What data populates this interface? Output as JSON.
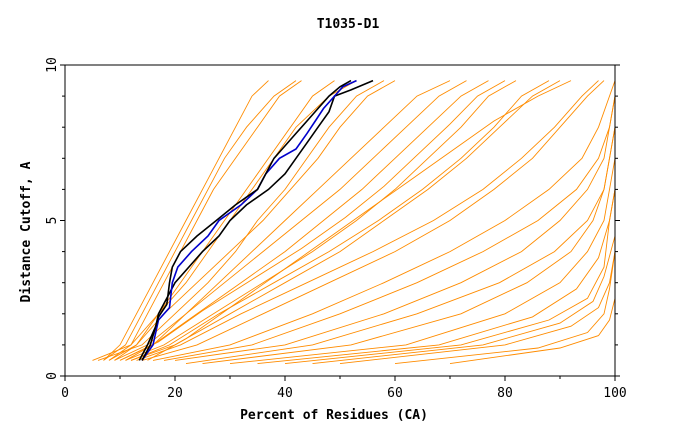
{
  "chart_data": {
    "type": "line",
    "title": "T1035-D1",
    "xlabel": "Percent of Residues (CA)",
    "ylabel": "Distance Cutoff, A",
    "xlim": [
      0,
      100
    ],
    "ylim": [
      0,
      10
    ],
    "x_ticks": [
      0,
      20,
      40,
      60,
      80,
      100
    ],
    "y_ticks": [
      0,
      5,
      10
    ],
    "grid": false,
    "legend": "none",
    "colors": {
      "background_models": "#ff8c00",
      "highlight_1": "#000000",
      "highlight_2": "#0000cc",
      "highlight_3": "#000000"
    },
    "background_curves": [
      {
        "x": [
          5,
          12,
          17,
          22,
          26,
          30,
          34,
          38,
          42,
          48,
          53
        ],
        "y": [
          0.5,
          1,
          2,
          3,
          4,
          5,
          6,
          7,
          8,
          9,
          9.5
        ]
      },
      {
        "x": [
          6,
          14,
          20,
          26,
          31,
          35,
          40,
          44,
          48,
          53,
          58
        ],
        "y": [
          0.5,
          1,
          2,
          3,
          4,
          5,
          6,
          7,
          8,
          9,
          9.5
        ]
      },
      {
        "x": [
          7,
          11,
          14,
          17,
          20,
          23,
          26,
          29,
          33,
          38,
          42
        ],
        "y": [
          0.5,
          1,
          2,
          3,
          4,
          5,
          6,
          7,
          8,
          9,
          9.5
        ]
      },
      {
        "x": [
          8,
          13,
          18,
          24,
          30,
          36,
          41,
          46,
          50,
          55,
          60
        ],
        "y": [
          0.5,
          1,
          2,
          3,
          4,
          5,
          6,
          7,
          8,
          9,
          9.5
        ]
      },
      {
        "x": [
          9,
          15,
          22,
          28,
          34,
          40,
          46,
          52,
          58,
          64,
          70
        ],
        "y": [
          0.5,
          1,
          2,
          3,
          4,
          5,
          6,
          7,
          8,
          9,
          9.5
        ]
      },
      {
        "x": [
          10,
          16,
          24,
          32,
          40,
          47,
          54,
          60,
          66,
          72,
          77
        ],
        "y": [
          0.5,
          1,
          2,
          3,
          4,
          5,
          6,
          7,
          8,
          9,
          9.5
        ]
      },
      {
        "x": [
          11,
          18,
          27,
          36,
          45,
          53,
          60,
          66,
          72,
          77,
          82
        ],
        "y": [
          0.5,
          1,
          2,
          3,
          4,
          5,
          6,
          7,
          8,
          9,
          9.5
        ]
      },
      {
        "x": [
          12,
          20,
          30,
          40,
          50,
          58,
          66,
          73,
          79,
          85,
          90
        ],
        "y": [
          0.5,
          1,
          2,
          3,
          4,
          5,
          6,
          7,
          8,
          9,
          9.5
        ]
      },
      {
        "x": [
          14,
          24,
          36,
          48,
          60,
          70,
          78,
          85,
          90,
          95,
          98
        ],
        "y": [
          0.5,
          1,
          2,
          3,
          4,
          5,
          6,
          7,
          8,
          9,
          9.5
        ]
      },
      {
        "x": [
          16,
          30,
          45,
          58,
          70,
          80,
          88,
          94,
          97,
          99,
          100
        ],
        "y": [
          0.5,
          1,
          2,
          3,
          4,
          5,
          6,
          7,
          8,
          9,
          9.5
        ]
      },
      {
        "x": [
          20,
          40,
          58,
          72,
          83,
          90,
          95,
          98,
          99,
          100,
          100
        ],
        "y": [
          0.5,
          1,
          2,
          3,
          4,
          5,
          6,
          7,
          8,
          9,
          9.5
        ]
      },
      {
        "x": [
          25,
          52,
          72,
          84,
          92,
          96,
          98,
          99,
          100,
          100,
          100
        ],
        "y": [
          0.4,
          1,
          2,
          3,
          4,
          5,
          6,
          7,
          8,
          9,
          9.5
        ]
      },
      {
        "x": [
          30,
          62,
          80,
          90,
          95,
          98,
          99,
          100,
          100,
          100,
          100
        ],
        "y": [
          0.4,
          1,
          2,
          3,
          4,
          5,
          6,
          7,
          8,
          9,
          9.5
        ]
      },
      {
        "x": [
          40,
          72,
          88,
          95,
          98,
          99,
          100,
          100,
          100,
          100,
          100
        ],
        "y": [
          0.4,
          1,
          1.8,
          2.5,
          3.5,
          5,
          6,
          7,
          8,
          9,
          9.5
        ]
      },
      {
        "x": [
          50,
          80,
          92,
          97,
          99,
          100,
          100,
          100,
          100,
          100,
          100
        ],
        "y": [
          0.4,
          1,
          1.6,
          2.2,
          3,
          4,
          5,
          6,
          7,
          8,
          9.5
        ]
      },
      {
        "x": [
          60,
          86,
          95,
          98,
          99,
          100,
          100,
          100,
          100,
          100,
          100
        ],
        "y": [
          0.4,
          0.9,
          1.4,
          2,
          2.8,
          4,
          5,
          6,
          7,
          8,
          9.5
        ]
      },
      {
        "x": [
          70,
          90,
          97,
          99,
          100,
          100,
          100,
          100,
          100,
          100,
          100
        ],
        "y": [
          0.4,
          0.9,
          1.3,
          1.8,
          2.5,
          3.5,
          5,
          6,
          7,
          8,
          9.5
        ]
      },
      {
        "x": [
          15,
          22,
          30,
          38,
          46,
          54,
          62,
          70,
          78,
          86,
          92
        ],
        "y": [
          0.5,
          1.2,
          2.2,
          3.2,
          4.2,
          5.2,
          6.2,
          7.2,
          8.2,
          9,
          9.5
        ]
      },
      {
        "x": [
          10,
          17,
          25,
          34,
          43,
          51,
          58,
          64,
          70,
          75,
          80
        ],
        "y": [
          0.5,
          1.1,
          2.1,
          3.1,
          4.1,
          5.1,
          6.1,
          7.1,
          8.1,
          9,
          9.5
        ]
      },
      {
        "x": [
          9,
          13,
          17,
          21,
          25,
          29,
          33,
          37,
          41,
          45,
          49
        ],
        "y": [
          0.5,
          1,
          2,
          3,
          4,
          5,
          6,
          7,
          8,
          9,
          9.5
        ]
      },
      {
        "x": [
          8,
          12,
          15,
          18,
          21,
          24,
          27,
          31,
          35,
          39,
          43
        ],
        "y": [
          0.5,
          1,
          2,
          3,
          4,
          5,
          6,
          7,
          8,
          9,
          9.5
        ]
      },
      {
        "x": [
          7,
          10,
          13,
          16,
          19,
          22,
          25,
          28,
          31,
          34,
          37
        ],
        "y": [
          0.5,
          1,
          2,
          3,
          4,
          5,
          6,
          7,
          8,
          9,
          9.5
        ]
      },
      {
        "x": [
          12,
          19,
          28,
          38,
          48,
          57,
          65,
          72,
          78,
          83,
          88
        ],
        "y": [
          0.5,
          1,
          2,
          3,
          4,
          5,
          6,
          7,
          8,
          9,
          9.5
        ]
      },
      {
        "x": [
          18,
          34,
          50,
          64,
          76,
          86,
          93,
          97,
          99,
          100,
          100
        ],
        "y": [
          0.5,
          1,
          2,
          3,
          4,
          5,
          6,
          7,
          8,
          9,
          9.5
        ]
      },
      {
        "x": [
          22,
          45,
          64,
          79,
          89,
          95,
          98,
          99,
          100,
          100,
          100
        ],
        "y": [
          0.4,
          1,
          2,
          3,
          4,
          5,
          6,
          7,
          8,
          9,
          9.5
        ]
      },
      {
        "x": [
          35,
          68,
          85,
          93,
          97,
          99,
          100,
          100,
          100,
          100,
          100
        ],
        "y": [
          0.4,
          1,
          1.9,
          2.8,
          3.8,
          5,
          6,
          7,
          8,
          9,
          9.5
        ]
      },
      {
        "x": [
          45,
          76,
          90,
          96,
          98,
          100,
          100,
          100,
          100,
          100,
          100
        ],
        "y": [
          0.4,
          1,
          1.7,
          2.4,
          3.2,
          4.5,
          5.5,
          6.5,
          7.5,
          8.5,
          9.5
        ]
      },
      {
        "x": [
          13,
          21,
          32,
          44,
          56,
          67,
          76,
          83,
          89,
          94,
          97
        ],
        "y": [
          0.5,
          1,
          2,
          3,
          4,
          5,
          6,
          7,
          8,
          9,
          9.5
        ]
      },
      {
        "x": [
          11,
          16,
          22,
          29,
          36,
          43,
          50,
          56,
          62,
          68,
          73
        ],
        "y": [
          0.5,
          1,
          2,
          3,
          4,
          5,
          6,
          7,
          8,
          9,
          9.5
        ]
      }
    ],
    "series": [
      {
        "x": [
          13.5,
          15,
          16.5,
          17,
          18.5,
          20,
          22.5,
          25,
          28,
          30,
          33,
          37,
          40,
          42,
          44,
          46,
          48,
          49,
          52,
          56
        ],
        "y": [
          0.5,
          1,
          1.6,
          2,
          2.5,
          3,
          3.5,
          4,
          4.5,
          5,
          5.5,
          6,
          6.5,
          7,
          7.5,
          8,
          8.5,
          9,
          9.2,
          9.5
        ]
      },
      {
        "x": [
          14,
          16,
          17,
          19,
          19.5,
          20.5,
          23,
          26,
          28,
          32,
          35,
          36.5,
          39,
          42,
          44,
          45.5,
          47,
          49,
          50.5,
          53
        ],
        "y": [
          0.5,
          1,
          1.8,
          2.2,
          3,
          3.5,
          4,
          4.5,
          5,
          5.5,
          6,
          6.5,
          7,
          7.3,
          7.8,
          8.2,
          8.6,
          9,
          9.3,
          9.5
        ]
      },
      {
        "x": [
          14,
          15.5,
          17,
          18.5,
          19,
          19.5,
          21,
          24,
          27.5,
          31,
          35,
          36.5,
          38,
          40,
          42,
          44,
          46,
          48,
          50,
          52
        ],
        "y": [
          0.5,
          1,
          1.9,
          2.3,
          3,
          3.5,
          4,
          4.5,
          5,
          5.5,
          6,
          6.5,
          7,
          7.4,
          7.8,
          8.2,
          8.6,
          9,
          9.3,
          9.5
        ]
      }
    ]
  }
}
